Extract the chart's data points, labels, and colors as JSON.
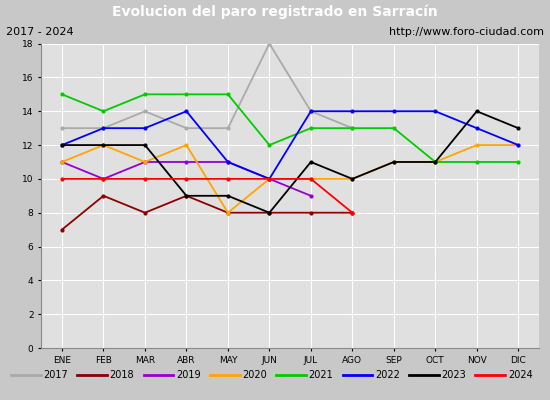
{
  "title": "Evolucion del paro registrado en Sarracín",
  "subtitle_left": "2017 - 2024",
  "subtitle_right": "http://www.foro-ciudad.com",
  "months": [
    "ENE",
    "FEB",
    "MAR",
    "ABR",
    "MAY",
    "JUN",
    "JUL",
    "AGO",
    "SEP",
    "OCT",
    "NOV",
    "DIC"
  ],
  "series": {
    "2017": {
      "color": "#aaaaaa",
      "data": [
        13,
        13,
        14,
        13,
        13,
        18,
        14,
        13,
        null,
        null,
        null,
        null
      ]
    },
    "2018": {
      "color": "#8b0000",
      "data": [
        7,
        9,
        8,
        9,
        8,
        8,
        8,
        8,
        null,
        null,
        null,
        null
      ]
    },
    "2019": {
      "color": "#9400d3",
      "data": [
        11,
        10,
        11,
        11,
        11,
        10,
        9,
        null,
        null,
        null,
        null,
        null
      ]
    },
    "2020": {
      "color": "#ffa500",
      "data": [
        11,
        12,
        11,
        12,
        8,
        10,
        10,
        10,
        11,
        11,
        12,
        12
      ]
    },
    "2021": {
      "color": "#00cc00",
      "data": [
        15,
        14,
        15,
        15,
        15,
        12,
        13,
        13,
        13,
        11,
        11,
        11
      ]
    },
    "2022": {
      "color": "#0000ff",
      "data": [
        12,
        13,
        13,
        14,
        11,
        10,
        14,
        14,
        14,
        14,
        13,
        12
      ]
    },
    "2023": {
      "color": "#000000",
      "data": [
        12,
        12,
        12,
        9,
        9,
        8,
        11,
        10,
        11,
        11,
        14,
        13
      ]
    },
    "2024": {
      "color": "#ff0000",
      "data": [
        10,
        10,
        10,
        10,
        10,
        10,
        10,
        8,
        null,
        null,
        null,
        null
      ]
    }
  },
  "ylim": [
    0,
    18
  ],
  "yticks": [
    0,
    2,
    4,
    6,
    8,
    10,
    12,
    14,
    16,
    18
  ],
  "bg_color": "#c8c8c8",
  "plot_bg_color": "#e0e0e0",
  "title_bg_color": "#4169e1",
  "title_color": "#ffffff",
  "header_bg_color": "#c8c8c8",
  "legend_bg_color": "#e8e8e8"
}
